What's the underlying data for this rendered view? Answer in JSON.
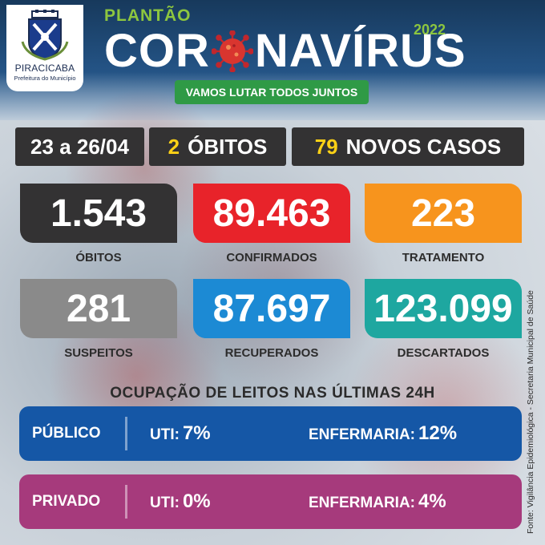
{
  "brand": {
    "city": "PIRACICABA",
    "subtitle": "Prefeitura do Município",
    "logo_icon": "city-coat-of-arms-icon"
  },
  "header": {
    "kicker": "PLANTÃO",
    "title_left": "COR",
    "title_right": "NAVÍRUS",
    "title_o_icon": "coronavirus-icon",
    "year": "2022",
    "slogan": "VAMOS LUTAR TODOS JUNTOS"
  },
  "summary": {
    "period": "23 a 26/04",
    "deaths_count": "2",
    "deaths_label": "ÓBITOS",
    "new_cases_count": "79",
    "new_cases_label": "NOVOS CASOS"
  },
  "stats": [
    {
      "value": "1.543",
      "label": "ÓBITOS",
      "color": "#333233"
    },
    {
      "value": "89.463",
      "label": "CONFIRMADOS",
      "color": "#e8232a"
    },
    {
      "value": "223",
      "label": "TRATAMENTO",
      "color": "#f7941d"
    },
    {
      "value": "281",
      "label": "SUSPEITOS",
      "color": "#8a8a8a"
    },
    {
      "value": "87.697",
      "label": "RECUPERADOS",
      "color": "#1c8ad4"
    },
    {
      "value": "123.099",
      "label": "DESCARTADOS",
      "color": "#1ea7a0"
    }
  ],
  "beds": {
    "title": "OCUPAÇÃO DE LEITOS NAS ÚLTIMAS 24H",
    "rows": [
      {
        "kind": "PÚBLICO",
        "uti_label": "UTI:",
        "uti_value": "7%",
        "enf_label": "ENFERMARIA:",
        "enf_value": "12%",
        "color": "#1557a6"
      },
      {
        "kind": "PRIVADO",
        "uti_label": "UTI:",
        "uti_value": "0%",
        "enf_label": "ENFERMARIA:",
        "enf_value": "4%",
        "color": "#a63a7c"
      }
    ]
  },
  "source": "Fonte: Vigilância Epidemiológica - Secretaria Municipal de Saúde",
  "colors": {
    "accent_green": "#8dc63f",
    "highlight_yellow": "#fcd116",
    "header_blue": "#235283"
  }
}
